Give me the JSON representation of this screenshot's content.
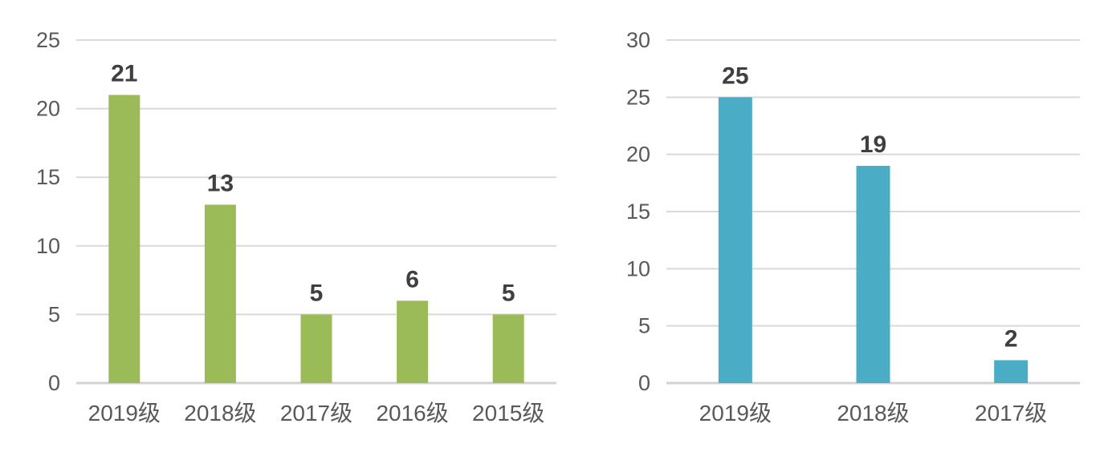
{
  "chart_data": [
    {
      "type": "bar",
      "title": "",
      "categories": [
        "2019级",
        "2018级",
        "2017级",
        "2016级",
        "2015级"
      ],
      "values": [
        21,
        13,
        5,
        6,
        5
      ],
      "data_labels": [
        "21",
        "13",
        "5",
        "6",
        "5"
      ],
      "bar_color": "#9BBB59",
      "xlabel": "",
      "ylabel": "",
      "ylim": [
        0,
        25
      ],
      "yticks": [
        0,
        5,
        10,
        15,
        20,
        25
      ],
      "grid": true,
      "legend": "none"
    },
    {
      "type": "bar",
      "title": "",
      "categories": [
        "2019级",
        "2018级",
        "2017级"
      ],
      "values": [
        25,
        19,
        2
      ],
      "data_labels": [
        "25",
        "19",
        "2"
      ],
      "bar_color": "#4BACC6",
      "xlabel": "",
      "ylabel": "",
      "ylim": [
        0,
        30
      ],
      "yticks": [
        0,
        5,
        10,
        15,
        20,
        25,
        30
      ],
      "grid": true,
      "legend": "none"
    }
  ],
  "colors": {
    "background": "#FFFFFF",
    "gridline": "#D9D9D9",
    "axis_line": "#D2D2D2",
    "tick_label": "#595959",
    "data_label": "#3F3F3F",
    "left_bar": "#9BBB59",
    "right_bar": "#4BACC6"
  }
}
